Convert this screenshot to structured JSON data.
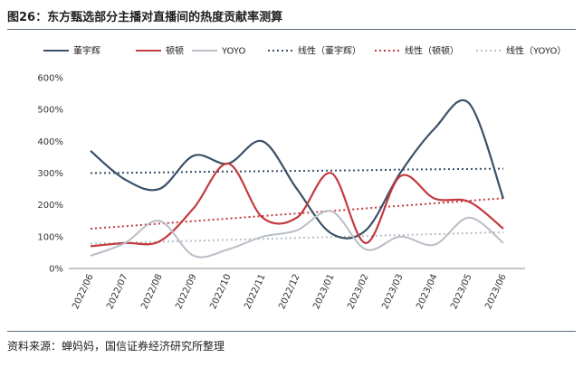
{
  "header": {
    "title": "图26：东方甄选部分主播对直播间的热度贡献率测算"
  },
  "footer": {
    "source": "资料来源：蝉妈妈，国信证券经济研究所整理"
  },
  "colors": {
    "dong": "#3b5168",
    "dunduns": "#c23a3e",
    "yoyo": "#b9bec6",
    "rule": "#5a6b7d"
  },
  "chart_data": {
    "type": "line",
    "title": "图26：东方甄选部分主播对直播间的热度贡献率测算",
    "xlabel": "",
    "ylabel": "",
    "categories": [
      "2022/06",
      "2022/07",
      "2022/08",
      "2022/09",
      "2022/10",
      "2022/11",
      "2022/12",
      "2023/01",
      "2023/02",
      "2023/03",
      "2023/04",
      "2023/05",
      "2023/06"
    ],
    "yticks": [
      "0%",
      "100%",
      "200%",
      "300%",
      "400%",
      "500%",
      "600%"
    ],
    "ylim": [
      0,
      600
    ],
    "unit": "%",
    "series": [
      {
        "name": "董宇辉",
        "key": "dong",
        "style": "solid",
        "values": [
          370,
          280,
          250,
          355,
          330,
          400,
          250,
          110,
          120,
          300,
          440,
          520,
          220
        ]
      },
      {
        "name": "顿顿",
        "key": "dunduns",
        "style": "solid",
        "values": [
          70,
          80,
          85,
          190,
          330,
          160,
          160,
          300,
          80,
          290,
          220,
          210,
          125
        ]
      },
      {
        "name": "YOYO",
        "key": "yoyo",
        "style": "solid",
        "values": [
          40,
          80,
          150,
          40,
          60,
          100,
          120,
          180,
          60,
          100,
          75,
          160,
          80
        ]
      },
      {
        "name": "线性（董宇辉）",
        "key": "dong",
        "style": "dotted",
        "values": [
          300,
          301,
          302,
          304,
          305,
          306,
          307,
          308,
          309,
          311,
          312,
          313,
          314
        ]
      },
      {
        "name": "线性（顿顿）",
        "key": "dunduns",
        "style": "dotted",
        "values": [
          125,
          133,
          141,
          149,
          157,
          165,
          173,
          181,
          189,
          197,
          205,
          213,
          221
        ]
      },
      {
        "name": "线性（YOYO）",
        "key": "yoyo",
        "style": "dotted",
        "values": [
          78,
          81,
          84,
          87,
          90,
          93,
          96,
          99,
          102,
          105,
          108,
          111,
          114
        ]
      }
    ],
    "legend": "top"
  }
}
